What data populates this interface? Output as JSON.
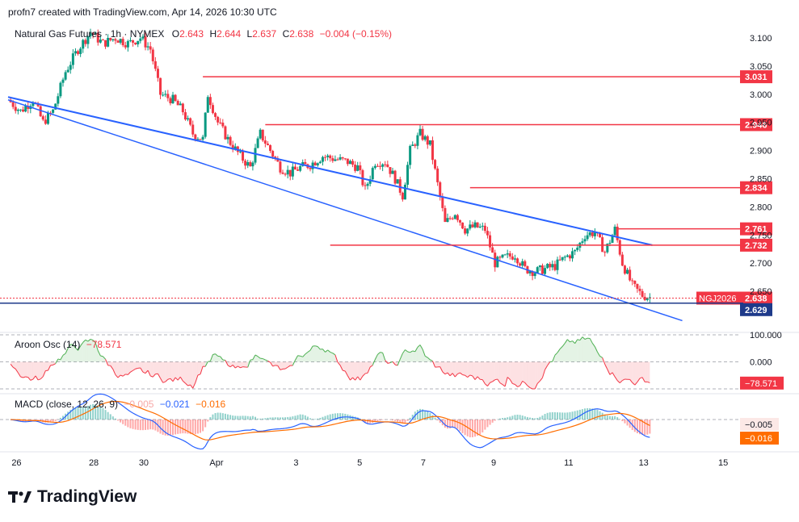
{
  "header": {
    "credit": "profn7 created with TradingView.com, Apr 14, 2026 10:30 UTC"
  },
  "brand": {
    "logo_text": "TradingView"
  },
  "colors": {
    "up": "#089981",
    "down": "#f23645",
    "channel": "#2962ff",
    "level": "#f23645",
    "price_box": "#f23645",
    "current": "#1e3a8a",
    "macd": "#2962ff",
    "signal": "#ff6d00",
    "aroon_pos": "#4caf50",
    "aroon_neg": "#f23645"
  },
  "chart_data": [
    {
      "type": "candlestick",
      "title": "Natural Gas Futures · 1h · NYMEX",
      "ohlc": {
        "o_label": "O",
        "o": "2.643",
        "h_label": "H",
        "h": "2.644",
        "l_label": "L",
        "l": "2.637",
        "c_label": "C",
        "c": "2.638",
        "change": "−0.004 (−0.15%)"
      },
      "ylim": [
        2.58,
        3.13
      ],
      "y_ticks": [
        "3.100",
        "3.050",
        "3.000",
        "2.950",
        "2.900",
        "2.850",
        "2.800",
        "2.750",
        "2.700",
        "2.650"
      ],
      "x_ticks": [
        "26",
        "28",
        "30",
        "Apr",
        "3",
        "5",
        "7",
        "9",
        "11",
        "13",
        "15"
      ],
      "close_path": [
        {
          "t": 0,
          "c": 2.99
        },
        {
          "t": 0.5,
          "c": 2.97
        },
        {
          "t": 1,
          "c": 2.99
        },
        {
          "t": 1.4,
          "c": 2.95
        },
        {
          "t": 1.8,
          "c": 2.97
        },
        {
          "t": 2.3,
          "c": 3.04
        },
        {
          "t": 2.8,
          "c": 3.08
        },
        {
          "t": 3.3,
          "c": 3.11
        },
        {
          "t": 3.8,
          "c": 3.09
        },
        {
          "t": 4.3,
          "c": 3.1
        },
        {
          "t": 4.8,
          "c": 3.09
        },
        {
          "t": 5.3,
          "c": 3.1
        },
        {
          "t": 5.7,
          "c": 3.08
        },
        {
          "t": 6.1,
          "c": 3.0
        },
        {
          "t": 6.6,
          "c": 2.99
        },
        {
          "t": 7.0,
          "c": 2.97
        },
        {
          "t": 7.4,
          "c": 2.93
        },
        {
          "t": 7.8,
          "c": 2.92
        },
        {
          "t": 8.0,
          "c": 3.0
        },
        {
          "t": 8.4,
          "c": 2.95
        },
        {
          "t": 8.8,
          "c": 2.92
        },
        {
          "t": 9.3,
          "c": 2.89
        },
        {
          "t": 9.7,
          "c": 2.87
        },
        {
          "t": 10.1,
          "c": 2.93
        },
        {
          "t": 10.5,
          "c": 2.9
        },
        {
          "t": 10.9,
          "c": 2.87
        },
        {
          "t": 11.3,
          "c": 2.86
        },
        {
          "t": 11.7,
          "c": 2.87
        },
        {
          "t": 12.1,
          "c": 2.875
        },
        {
          "t": 12.6,
          "c": 2.89
        },
        {
          "t": 13.1,
          "c": 2.885
        },
        {
          "t": 13.6,
          "c": 2.88
        },
        {
          "t": 14.0,
          "c": 2.87
        },
        {
          "t": 14.3,
          "c": 2.83
        },
        {
          "t": 14.7,
          "c": 2.88
        },
        {
          "t": 15.1,
          "c": 2.88
        },
        {
          "t": 15.5,
          "c": 2.85
        },
        {
          "t": 15.8,
          "c": 2.82
        },
        {
          "t": 16.1,
          "c": 2.9
        },
        {
          "t": 16.5,
          "c": 2.93
        },
        {
          "t": 16.9,
          "c": 2.91
        },
        {
          "t": 17.5,
          "c": 2.77
        },
        {
          "t": 17.9,
          "c": 2.79
        },
        {
          "t": 18.3,
          "c": 2.76
        },
        {
          "t": 18.7,
          "c": 2.765
        },
        {
          "t": 19.1,
          "c": 2.76
        },
        {
          "t": 19.5,
          "c": 2.7
        },
        {
          "t": 19.9,
          "c": 2.71
        },
        {
          "t": 20.3,
          "c": 2.715
        },
        {
          "t": 20.7,
          "c": 2.69
        },
        {
          "t": 21.1,
          "c": 2.685
        },
        {
          "t": 21.5,
          "c": 2.69
        },
        {
          "t": 21.9,
          "c": 2.695
        },
        {
          "t": 22.3,
          "c": 2.71
        },
        {
          "t": 22.7,
          "c": 2.72
        },
        {
          "t": 23.1,
          "c": 2.75
        },
        {
          "t": 23.5,
          "c": 2.755
        },
        {
          "t": 23.9,
          "c": 2.72
        },
        {
          "t": 24.3,
          "c": 2.76
        },
        {
          "t": 24.6,
          "c": 2.7
        },
        {
          "t": 25.0,
          "c": 2.66
        },
        {
          "t": 25.4,
          "c": 2.643
        },
        {
          "t": 25.8,
          "c": 2.638
        }
      ],
      "levels": [
        {
          "value": 3.031,
          "label": "3.031"
        },
        {
          "value": 2.946,
          "label": "2.946"
        },
        {
          "value": 2.834,
          "label": "2.834"
        },
        {
          "value": 2.761,
          "label": "2.761"
        },
        {
          "value": 2.732,
          "label": "2.732"
        }
      ],
      "current_price": {
        "value": 2.638,
        "label": "2.638",
        "symbol": "NGJ2026"
      },
      "bid_line": {
        "value": 2.629,
        "label": "2.629"
      }
    },
    {
      "type": "area",
      "title": "Aroon Osc (14)",
      "value_label": "−78.571",
      "last_label": "−78.571",
      "y_ticks": [
        "100.000",
        "0.000"
      ],
      "ylim": [
        -100,
        100
      ]
    },
    {
      "type": "line",
      "title": "MACD (close, 12, 26, 9)",
      "values": [
        "−0.005",
        "−0.021",
        "−0.016"
      ],
      "axis_labels": [
        "−0.005",
        "−0.016"
      ]
    }
  ]
}
